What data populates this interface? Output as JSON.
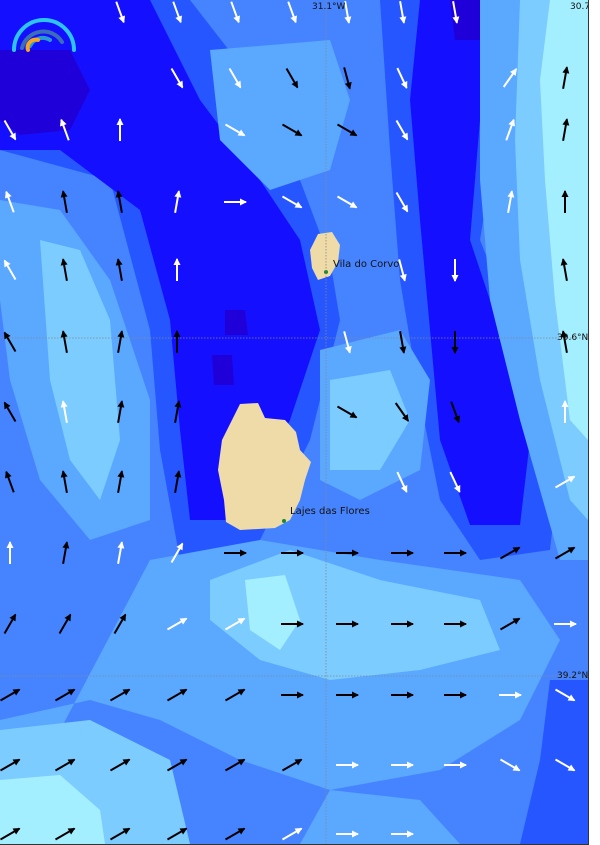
{
  "map": {
    "graticule": {
      "lon_labels": [
        "31.1°W",
        "30.7°W"
      ],
      "lat_labels": [
        "39.6°N",
        "39.2°N"
      ]
    },
    "places": [
      {
        "name": "Vila do Corvo"
      },
      {
        "name": "Lajes das Flores"
      }
    ],
    "colors": {
      "level_0": "#2000d8",
      "level_1": "#1410ff",
      "level_2": "#2656ff",
      "level_3": "#4684ff",
      "level_4": "#5aa8ff",
      "level_5": "#7cccff",
      "level_6": "#a4efff",
      "land": "#eedba8",
      "arrow_dark": "#000000",
      "arrow_light": "#ffffff"
    },
    "logo": "weather-arc-logo",
    "vectors": [
      [
        0,
        2,
        160,
        "w"
      ],
      [
        0,
        3,
        160,
        "w"
      ],
      [
        0,
        4,
        160,
        "w"
      ],
      [
        0,
        5,
        160,
        "w"
      ],
      [
        0,
        6,
        170,
        "w"
      ],
      [
        0,
        7,
        170,
        "w"
      ],
      [
        0,
        8,
        170,
        "w"
      ],
      [
        1,
        3,
        150,
        "w"
      ],
      [
        1,
        4,
        150,
        "w"
      ],
      [
        1,
        5,
        150,
        "b"
      ],
      [
        1,
        6,
        165,
        "b"
      ],
      [
        1,
        7,
        155,
        "w"
      ],
      [
        1,
        9,
        35,
        "w"
      ],
      [
        1,
        10,
        10,
        "b"
      ],
      [
        2,
        0,
        150,
        "w"
      ],
      [
        2,
        1,
        340,
        "w"
      ],
      [
        2,
        2,
        0,
        "w"
      ],
      [
        2,
        4,
        120,
        "w"
      ],
      [
        2,
        5,
        120,
        "b"
      ],
      [
        2,
        6,
        120,
        "b"
      ],
      [
        2,
        7,
        150,
        "w"
      ],
      [
        2,
        9,
        20,
        "w"
      ],
      [
        2,
        10,
        10,
        "b"
      ],
      [
        3,
        0,
        340,
        "w"
      ],
      [
        3,
        1,
        350,
        "b"
      ],
      [
        3,
        2,
        350,
        "b"
      ],
      [
        3,
        3,
        10,
        "w"
      ],
      [
        3,
        4,
        90,
        "w"
      ],
      [
        3,
        5,
        120,
        "w"
      ],
      [
        3,
        6,
        120,
        "w"
      ],
      [
        3,
        7,
        150,
        "w"
      ],
      [
        3,
        9,
        10,
        "w"
      ],
      [
        3,
        10,
        0,
        "b"
      ],
      [
        4,
        0,
        330,
        "w"
      ],
      [
        4,
        1,
        350,
        "b"
      ],
      [
        4,
        2,
        350,
        "b"
      ],
      [
        4,
        3,
        0,
        "w"
      ],
      [
        4,
        7,
        165,
        "w"
      ],
      [
        4,
        8,
        180,
        "w"
      ],
      [
        4,
        10,
        350,
        "b"
      ],
      [
        5,
        0,
        330,
        "b"
      ],
      [
        5,
        1,
        350,
        "b"
      ],
      [
        5,
        2,
        10,
        "b"
      ],
      [
        5,
        3,
        0,
        "b"
      ],
      [
        5,
        6,
        165,
        "w"
      ],
      [
        5,
        7,
        170,
        "b"
      ],
      [
        5,
        8,
        180,
        "b"
      ],
      [
        5,
        10,
        350,
        "b"
      ],
      [
        6,
        0,
        330,
        "b"
      ],
      [
        6,
        1,
        350,
        "w"
      ],
      [
        6,
        2,
        10,
        "b"
      ],
      [
        6,
        3,
        10,
        "b"
      ],
      [
        6,
        6,
        120,
        "b"
      ],
      [
        6,
        7,
        145,
        "b"
      ],
      [
        6,
        8,
        160,
        "b"
      ],
      [
        6,
        10,
        0,
        "w"
      ],
      [
        7,
        0,
        340,
        "b"
      ],
      [
        7,
        1,
        350,
        "b"
      ],
      [
        7,
        2,
        10,
        "b"
      ],
      [
        7,
        3,
        10,
        "b"
      ],
      [
        7,
        7,
        155,
        "w"
      ],
      [
        7,
        8,
        155,
        "w"
      ],
      [
        7,
        10,
        60,
        "w"
      ],
      [
        8,
        0,
        0,
        "w"
      ],
      [
        8,
        1,
        10,
        "b"
      ],
      [
        8,
        2,
        10,
        "w"
      ],
      [
        8,
        3,
        30,
        "w"
      ],
      [
        8,
        4,
        90,
        "b"
      ],
      [
        8,
        5,
        90,
        "b"
      ],
      [
        8,
        6,
        90,
        "b"
      ],
      [
        8,
        7,
        90,
        "b"
      ],
      [
        8,
        8,
        90,
        "b"
      ],
      [
        8,
        9,
        60,
        "b"
      ],
      [
        8,
        10,
        60,
        "b"
      ],
      [
        9,
        0,
        30,
        "b"
      ],
      [
        9,
        1,
        30,
        "b"
      ],
      [
        9,
        2,
        30,
        "b"
      ],
      [
        9,
        3,
        60,
        "w"
      ],
      [
        9,
        4,
        60,
        "w"
      ],
      [
        9,
        5,
        90,
        "b"
      ],
      [
        9,
        6,
        90,
        "b"
      ],
      [
        9,
        7,
        90,
        "b"
      ],
      [
        9,
        8,
        90,
        "b"
      ],
      [
        9,
        9,
        60,
        "b"
      ],
      [
        9,
        10,
        90,
        "w"
      ],
      [
        10,
        0,
        60,
        "b"
      ],
      [
        10,
        1,
        60,
        "b"
      ],
      [
        10,
        2,
        60,
        "b"
      ],
      [
        10,
        3,
        60,
        "b"
      ],
      [
        10,
        4,
        60,
        "b"
      ],
      [
        10,
        5,
        90,
        "b"
      ],
      [
        10,
        6,
        90,
        "b"
      ],
      [
        10,
        7,
        90,
        "b"
      ],
      [
        10,
        8,
        90,
        "b"
      ],
      [
        10,
        9,
        90,
        "w"
      ],
      [
        10,
        10,
        120,
        "w"
      ],
      [
        11,
        0,
        60,
        "b"
      ],
      [
        11,
        1,
        60,
        "b"
      ],
      [
        11,
        2,
        60,
        "b"
      ],
      [
        11,
        3,
        60,
        "b"
      ],
      [
        11,
        4,
        60,
        "b"
      ],
      [
        11,
        5,
        60,
        "b"
      ],
      [
        11,
        6,
        90,
        "w"
      ],
      [
        11,
        7,
        90,
        "w"
      ],
      [
        11,
        8,
        90,
        "w"
      ],
      [
        11,
        9,
        120,
        "w"
      ],
      [
        11,
        10,
        120,
        "w"
      ],
      [
        12,
        0,
        60,
        "b"
      ],
      [
        12,
        1,
        60,
        "b"
      ],
      [
        12,
        2,
        60,
        "b"
      ],
      [
        12,
        3,
        60,
        "b"
      ],
      [
        12,
        4,
        60,
        "b"
      ],
      [
        12,
        5,
        60,
        "w"
      ],
      [
        12,
        6,
        90,
        "w"
      ],
      [
        12,
        7,
        90,
        "w"
      ]
    ]
  }
}
